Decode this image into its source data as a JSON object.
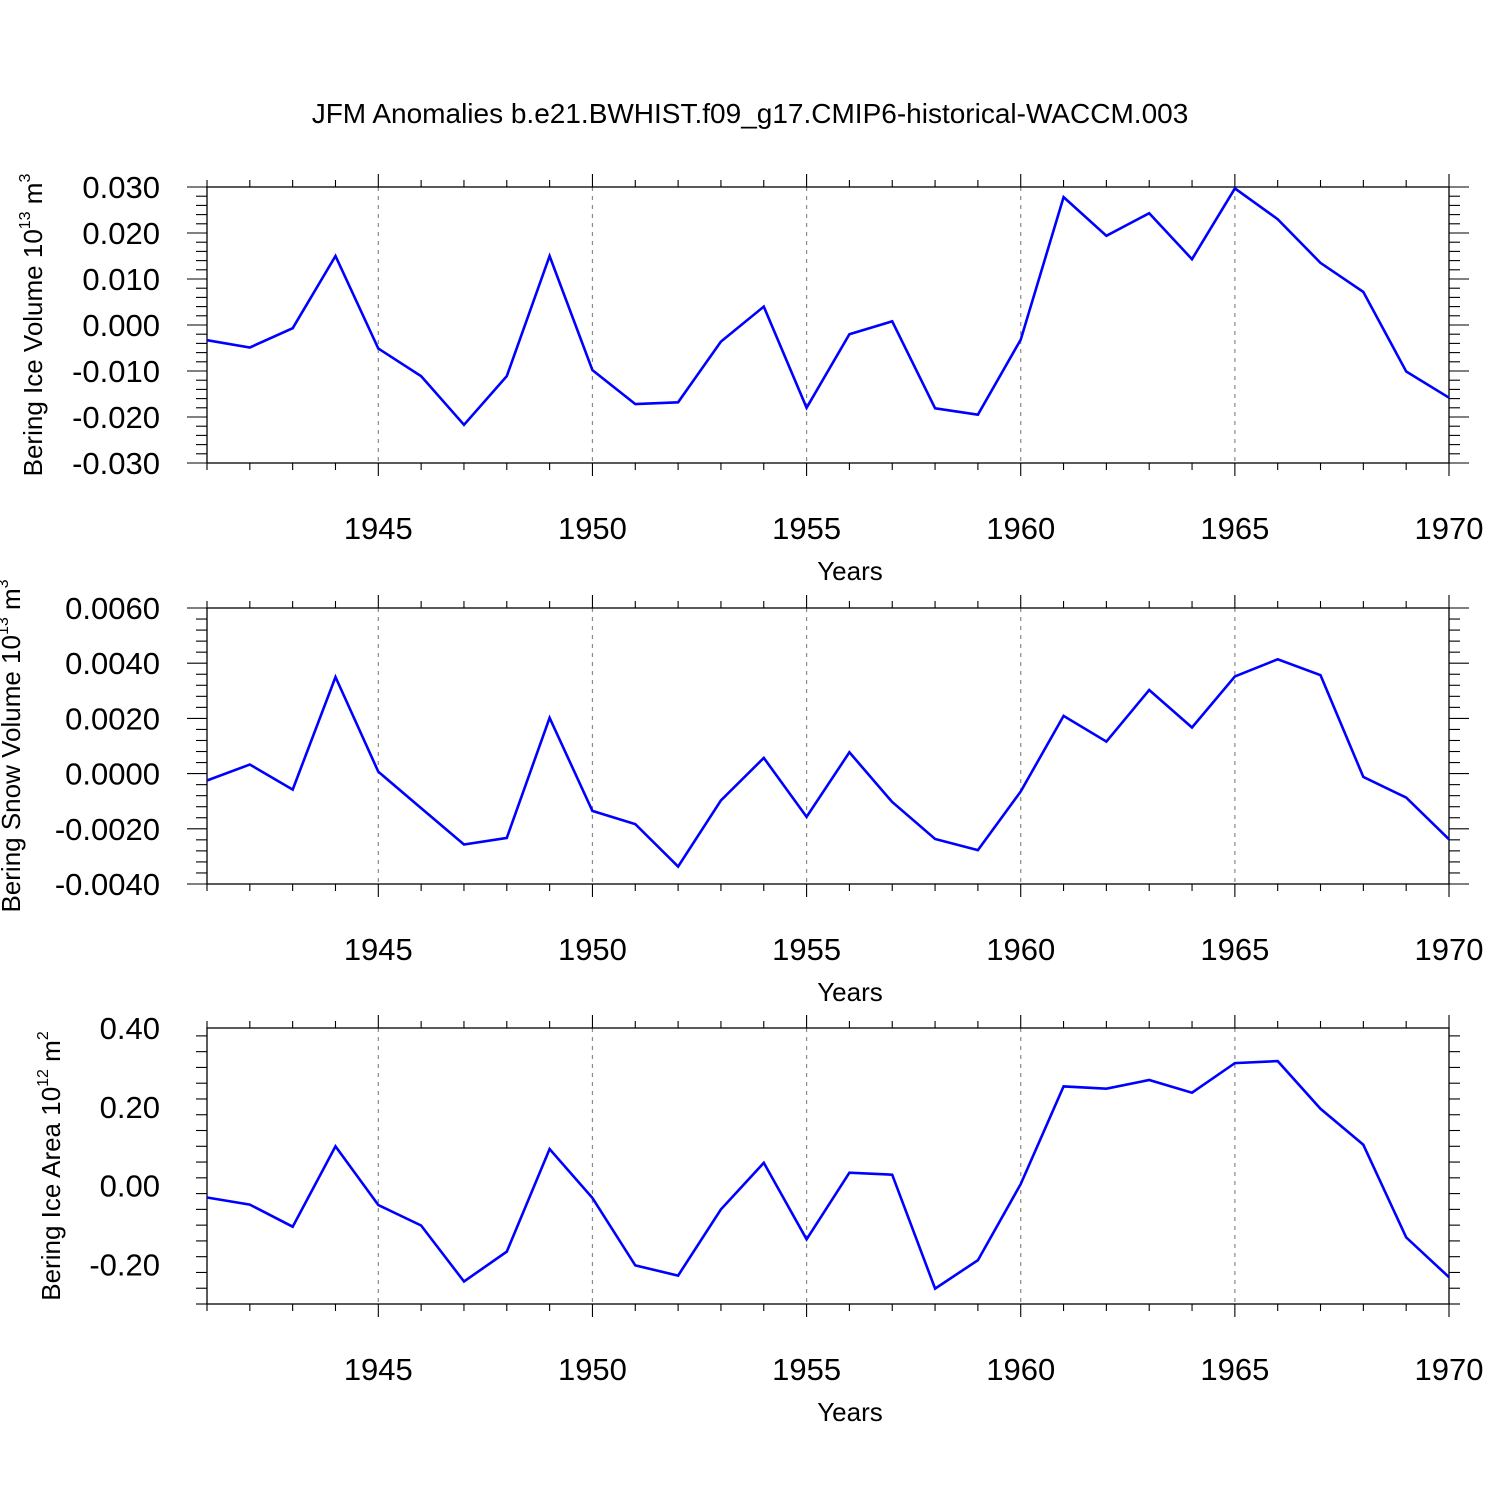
{
  "title": "JFM Anomalies b.e21.BWHIST.f09_g17.CMIP6-historical-WACCM.003",
  "colors": {
    "line": "#0000ff",
    "axis": "#000000",
    "grid": "#8a8a8a"
  },
  "chart_data": [
    {
      "type": "line",
      "xlabel": "Years",
      "ylabel": "Bering Ice Volume 10",
      "ylabel_sup": "13",
      "ylabel_unit": " m",
      "ylabel_unit_sup": "3",
      "xlim": [
        1941,
        1970
      ],
      "ylim": [
        -0.03,
        0.03
      ],
      "yticks": [
        -0.03,
        -0.02,
        -0.01,
        0.0,
        0.01,
        0.02,
        0.03
      ],
      "ytick_labels": [
        "-0.030",
        "-0.020",
        "-0.010",
        "0.000",
        "0.010",
        "0.020",
        "0.030"
      ],
      "xticks": [
        1945,
        1950,
        1955,
        1960,
        1965,
        1970
      ],
      "xtick_labels": [
        "1945",
        "1950",
        "1955",
        "1960",
        "1965",
        "1970"
      ],
      "x": [
        1941,
        1942,
        1943,
        1944,
        1945,
        1946,
        1947,
        1948,
        1949,
        1950,
        1951,
        1952,
        1953,
        1954,
        1955,
        1956,
        1957,
        1958,
        1959,
        1960,
        1961,
        1962,
        1963,
        1964,
        1965,
        1966,
        1967,
        1968,
        1969,
        1970
      ],
      "y": [
        -0.0033,
        -0.0049,
        -0.0007,
        0.015,
        -0.0051,
        -0.0111,
        -0.0217,
        -0.0111,
        0.015,
        -0.0098,
        -0.0172,
        -0.0168,
        -0.0036,
        0.004,
        -0.018,
        -0.002,
        0.0008,
        -0.0181,
        -0.0195,
        -0.0032,
        0.0278,
        0.0194,
        0.0243,
        0.0143,
        0.0297,
        0.023,
        0.0135,
        0.0072,
        -0.0101,
        -0.0158
      ]
    },
    {
      "type": "line",
      "xlabel": "Years",
      "ylabel": "Bering Snow Volume 10",
      "ylabel_sup": "13",
      "ylabel_unit": " m",
      "ylabel_unit_sup": "3",
      "xlim": [
        1941,
        1970
      ],
      "ylim": [
        -0.004,
        0.006
      ],
      "yticks": [
        -0.004,
        -0.002,
        0.0,
        0.002,
        0.004,
        0.006
      ],
      "ytick_labels": [
        "-0.0040",
        "-0.0020",
        "0.0000",
        "0.0020",
        "0.0040",
        "0.0060"
      ],
      "xticks": [
        1945,
        1950,
        1955,
        1960,
        1965,
        1970
      ],
      "xtick_labels": [
        "1945",
        "1950",
        "1955",
        "1960",
        "1965",
        "1970"
      ],
      "x": [
        1941,
        1942,
        1943,
        1944,
        1945,
        1946,
        1947,
        1948,
        1949,
        1950,
        1951,
        1952,
        1953,
        1954,
        1955,
        1956,
        1957,
        1958,
        1959,
        1960,
        1961,
        1962,
        1963,
        1964,
        1965,
        1966,
        1967,
        1968,
        1969,
        1970
      ],
      "y": [
        -0.00025,
        0.00033,
        -0.00058,
        0.0035,
        7e-05,
        -0.00125,
        -0.00257,
        -0.00233,
        0.00202,
        -0.00135,
        -0.00183,
        -0.00337,
        -0.00097,
        0.00057,
        -0.00157,
        0.00077,
        -0.00103,
        -0.00237,
        -0.00277,
        -0.00065,
        0.00209,
        0.00116,
        0.00303,
        0.00167,
        0.00352,
        0.00414,
        0.00357,
        -0.00012,
        -0.00087,
        -0.00238
      ]
    },
    {
      "type": "line",
      "xlabel": "Years",
      "ylabel": "Bering Ice Area 10",
      "ylabel_sup": "12",
      "ylabel_unit": " m",
      "ylabel_unit_sup": "2",
      "xlim": [
        1941,
        1970
      ],
      "ylim": [
        -0.3,
        0.4
      ],
      "yticks": [
        -0.2,
        0.0,
        0.2,
        0.4
      ],
      "ytick_labels": [
        "-0.20",
        "0.00",
        "0.20",
        "0.40"
      ],
      "xticks": [
        1945,
        1950,
        1955,
        1960,
        1965,
        1970
      ],
      "xtick_labels": [
        "1945",
        "1950",
        "1955",
        "1960",
        "1965",
        "1970"
      ],
      "x": [
        1941,
        1942,
        1943,
        1944,
        1945,
        1946,
        1947,
        1948,
        1949,
        1950,
        1951,
        1952,
        1953,
        1954,
        1955,
        1956,
        1957,
        1958,
        1959,
        1960,
        1961,
        1962,
        1963,
        1964,
        1965,
        1966,
        1967,
        1968,
        1969,
        1970
      ],
      "y": [
        -0.03,
        -0.048,
        -0.104,
        0.1,
        -0.049,
        -0.101,
        -0.243,
        -0.167,
        0.093,
        -0.031,
        -0.202,
        -0.228,
        -0.06,
        0.058,
        -0.136,
        0.033,
        0.028,
        -0.261,
        -0.189,
        0.004,
        0.252,
        0.246,
        0.268,
        0.236,
        0.311,
        0.316,
        0.195,
        0.104,
        -0.131,
        -0.232
      ]
    }
  ]
}
